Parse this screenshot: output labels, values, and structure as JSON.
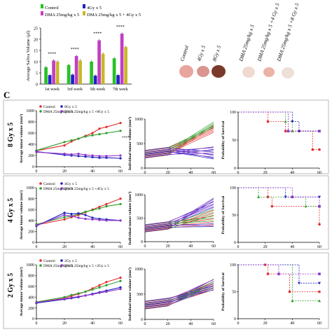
{
  "panel_c_letter": "C",
  "colors": {
    "control": "#e32b2b",
    "dma": "#2ca02c",
    "ir": "#1f1fbf",
    "combo": "#8e33c9",
    "bar_control": "#27c227",
    "bar_gy": "#2020c8",
    "bar_dma": "#c23fc2",
    "bar_combo": "#c8b828"
  },
  "photo_labels": [
    "Control",
    "4Gy x 5",
    "8Gy x 5",
    "DMA 25mg/kg x 5",
    "DMA 25mg/kg x 5 +4 Gy x 5",
    "DMA 25mg/kg x 5 +8 Gy x 5"
  ],
  "row_labels": [
    "8 Gy x 5",
    "4 Gy x 5",
    "2 Gy x 5"
  ],
  "chart_data": [
    {
      "type": "bar",
      "ylabel": "Average Saliva Volume (μl)",
      "categories": [
        "1st week",
        "3rd week",
        "5th week",
        "7th week"
      ],
      "ylim": [
        0,
        25
      ],
      "yticks": [
        0,
        5,
        10,
        15,
        20,
        25
      ],
      "legend": [
        "Control",
        "4Gy x 5",
        "DMA 25mg/kg x 5",
        "DMA 25mg/kg x 5 + 4Gy x 5"
      ],
      "series": [
        {
          "name": "Control",
          "values": [
            7.5,
            8.5,
            10.0,
            11.5
          ]
        },
        {
          "name": "4Gy x 5",
          "values": [
            4.0,
            4.2,
            3.8,
            4.0
          ]
        },
        {
          "name": "DMA 25mg/kg x 5",
          "values": [
            10.5,
            12.5,
            19.5,
            22.5
          ]
        },
        {
          "name": "DMA 25mg/kg x 5 + 4Gy x 5",
          "values": [
            10.0,
            10.5,
            13.5,
            16.5
          ]
        }
      ],
      "significance": "****"
    },
    {
      "type": "line",
      "ylabel": "Average tumor volume (mm³)",
      "x": [
        0,
        20,
        40,
        60
      ],
      "xlim": [
        0,
        60
      ],
      "ylim": [
        0,
        1000
      ],
      "yticks": [
        0,
        200,
        400,
        600,
        800,
        1000
      ],
      "xticks": [
        0,
        20,
        40,
        60
      ],
      "legend": [
        "Control",
        "8Gy x 5",
        "DMA 25mg/kg x 5",
        "DMA 25mg/kg x 5 +8Gy x 5"
      ],
      "series": [
        {
          "name": "Control",
          "x": [
            0,
            20,
            25,
            30,
            35,
            40,
            45,
            50,
            60
          ],
          "values": [
            285,
            380,
            450,
            500,
            550,
            600,
            680,
            710,
            780
          ]
        },
        {
          "name": "DMA 25mg/kg x 5",
          "x": [
            0,
            20,
            25,
            30,
            35,
            40,
            45,
            50,
            60
          ],
          "values": [
            290,
            440,
            470,
            500,
            540,
            560,
            580,
            600,
            640
          ]
        },
        {
          "name": "8Gy x 5",
          "x": [
            0,
            20,
            25,
            30,
            35,
            40,
            45,
            50,
            60
          ],
          "values": [
            270,
            210,
            200,
            190,
            180,
            170,
            160,
            160,
            150
          ]
        },
        {
          "name": "DMA 25mg/kg x 5 +8Gy x 5",
          "x": [
            0,
            20,
            25,
            30,
            35,
            40,
            45,
            50,
            60
          ],
          "values": [
            260,
            230,
            220,
            230,
            210,
            200,
            190,
            190,
            200
          ]
        }
      ],
      "annotation": "****"
    },
    {
      "type": "line",
      "ylabel": "Individual tumor volume (mm³)",
      "xlim": [
        0,
        60
      ],
      "ylim": [
        0,
        1000
      ],
      "yticks": [
        0,
        500,
        1000
      ],
      "xticks": [
        0,
        20,
        40,
        60
      ]
    },
    {
      "type": "line",
      "ylabel": "Probability of Survival",
      "xlim": [
        0,
        60
      ],
      "ylim": [
        0,
        100
      ],
      "yticks": [
        0,
        50,
        100
      ],
      "xticks": [
        0,
        20,
        40,
        60
      ],
      "series": [
        {
          "name": "Control",
          "x": [
            0,
            22,
            35,
            45,
            55,
            60
          ],
          "values": [
            100,
            83,
            66,
            66,
            33,
            33
          ]
        },
        {
          "name": "DMA 25mg/kg x 5",
          "x": [
            0,
            35,
            40,
            60
          ],
          "values": [
            100,
            83,
            66,
            66
          ]
        },
        {
          "name": "8Gy x 5",
          "x": [
            0,
            40,
            45,
            60
          ],
          "values": [
            100,
            83,
            66,
            66
          ]
        },
        {
          "name": "DMA 25mg/kg x 5 +8Gy x 5",
          "x": [
            0,
            37,
            60
          ],
          "values": [
            100,
            66,
            66
          ]
        }
      ]
    },
    {
      "type": "line",
      "ylabel": "Average tumor volume (mm³)",
      "xlim": [
        0,
        60
      ],
      "ylim": [
        0,
        1000
      ],
      "yticks": [
        0,
        200,
        400,
        600,
        800,
        1000
      ],
      "xticks": [
        0,
        20,
        40,
        60
      ],
      "legend": [
        "Control",
        "4Gy x 5",
        "DMA 25mg/kg x 5",
        "DMA 25mg/kg x 5 +4Gy x 5"
      ],
      "series": [
        {
          "name": "Control",
          "x": [
            0,
            20,
            25,
            30,
            35,
            40,
            45,
            50,
            60
          ],
          "values": [
            320,
            420,
            460,
            500,
            550,
            600,
            650,
            700,
            800
          ]
        },
        {
          "name": "DMA 25mg/kg x 5",
          "x": [
            0,
            20,
            25,
            30,
            35,
            40,
            45,
            50,
            60
          ],
          "values": [
            330,
            460,
            480,
            520,
            560,
            590,
            620,
            660,
            700
          ]
        },
        {
          "name": "4Gy x 5",
          "x": [
            0,
            20,
            25,
            30,
            35,
            40,
            45,
            50,
            60
          ],
          "values": [
            300,
            540,
            520,
            530,
            500,
            450,
            430,
            420,
            400
          ]
        },
        {
          "name": "DMA 25mg/kg x 5 +4Gy x 5",
          "x": [
            0,
            20,
            25,
            30,
            35,
            40,
            45,
            50,
            60
          ],
          "values": [
            310,
            500,
            480,
            450,
            430,
            420,
            410,
            400,
            400
          ]
        }
      ]
    },
    {
      "type": "line",
      "ylabel": "Individual tumor volume (mm³)",
      "xlim": [
        0,
        60
      ],
      "ylim": [
        0,
        1000
      ],
      "yticks": [
        0,
        500,
        1000
      ],
      "xticks": [
        0,
        20,
        40,
        60
      ]
    },
    {
      "type": "line",
      "ylabel": "Probability of Survival",
      "xlim": [
        0,
        60
      ],
      "ylim": [
        0,
        100
      ],
      "yticks": [
        0,
        50,
        100
      ],
      "xticks": [
        0,
        20,
        40,
        60
      ],
      "series": [
        {
          "name": "Control",
          "x": [
            0,
            22,
            25,
            60
          ],
          "values": [
            100,
            83,
            66,
            33
          ]
        },
        {
          "name": "DMA 25mg/kg x 5",
          "x": [
            0,
            15,
            50,
            60
          ],
          "values": [
            100,
            83,
            66,
            66
          ]
        },
        {
          "name": "4Gy x 5",
          "x": [
            0,
            35,
            60
          ],
          "values": [
            100,
            83,
            83
          ]
        },
        {
          "name": "DMA 25mg/kg x 5 +4Gy x 5",
          "x": [
            0,
            40,
            60
          ],
          "values": [
            100,
            83,
            66
          ]
        }
      ]
    },
    {
      "type": "line",
      "ylabel": "Average tumor volume (mm³)",
      "xlim": [
        0,
        60
      ],
      "ylim": [
        0,
        1000
      ],
      "yticks": [
        0,
        200,
        400,
        600,
        800,
        1000
      ],
      "xticks": [
        0,
        20,
        40,
        60
      ],
      "legend": [
        "Control",
        "2Gy x 5",
        "DMA 25mg/kg x 5",
        "DMA 25mg/kg x 5 +2Gy x 5"
      ],
      "series": [
        {
          "name": "Control",
          "x": [
            0,
            20,
            25,
            30,
            35,
            40,
            45,
            50,
            60
          ],
          "values": [
            300,
            380,
            420,
            460,
            500,
            560,
            620,
            680,
            760
          ]
        },
        {
          "name": "DMA 25mg/kg x 5",
          "x": [
            0,
            20,
            25,
            30,
            35,
            40,
            45,
            50,
            60
          ],
          "values": [
            310,
            400,
            440,
            470,
            500,
            540,
            580,
            620,
            700
          ]
        },
        {
          "name": "2Gy x 5",
          "x": [
            0,
            20,
            25,
            30,
            35,
            40,
            45,
            50,
            60
          ],
          "values": [
            290,
            360,
            380,
            400,
            430,
            460,
            490,
            520,
            580
          ]
        },
        {
          "name": "DMA 25mg/kg x 5 +2Gy x 5",
          "x": [
            0,
            20,
            25,
            30,
            35,
            40,
            45,
            50,
            60
          ],
          "values": [
            300,
            370,
            390,
            410,
            430,
            450,
            480,
            500,
            550
          ]
        }
      ]
    },
    {
      "type": "line",
      "ylabel": "Individual tumor volume (mm³)",
      "xlim": [
        0,
        60
      ],
      "ylim": [
        0,
        1000
      ],
      "yticks": [
        0,
        500,
        1000
      ],
      "xticks": [
        0,
        20,
        40,
        60
      ]
    },
    {
      "type": "line",
      "ylabel": "Probability of Survival",
      "xlim": [
        0,
        60
      ],
      "ylim": [
        0,
        100
      ],
      "yticks": [
        0,
        50,
        100
      ],
      "xticks": [
        0,
        20,
        40,
        60
      ],
      "series": [
        {
          "name": "Control",
          "x": [
            0,
            20,
            22,
            38,
            60
          ],
          "values": [
            100,
            100,
            83,
            50,
            50
          ]
        },
        {
          "name": "DMA 25mg/kg x 5",
          "x": [
            0,
            40,
            60
          ],
          "values": [
            100,
            33,
            33
          ]
        },
        {
          "name": "2Gy x 5",
          "x": [
            0,
            45,
            60
          ],
          "values": [
            100,
            66,
            66
          ]
        },
        {
          "name": "DMA 25mg/kg x 5 +2Gy x 5",
          "x": [
            0,
            30,
            60
          ],
          "values": [
            100,
            83,
            83
          ]
        }
      ]
    }
  ]
}
